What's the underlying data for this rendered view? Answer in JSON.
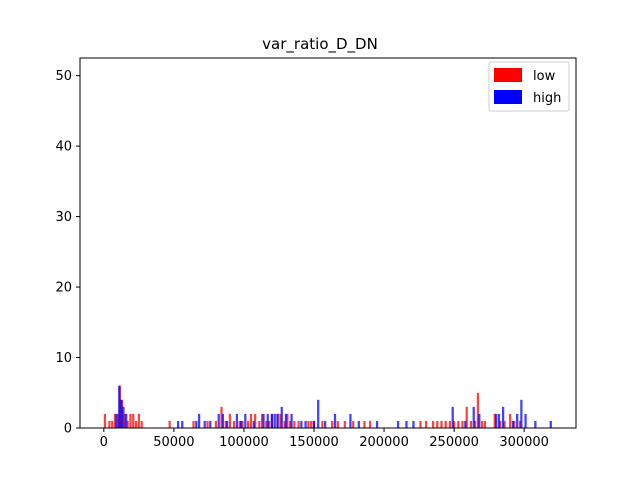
{
  "chart_data": {
    "type": "bar",
    "title": "var_ratio_D_DN",
    "xlabel": "",
    "ylabel": "",
    "xlim": [
      -17000,
      337000
    ],
    "ylim": [
      0,
      52.5
    ],
    "xticks": [
      0,
      50000,
      100000,
      150000,
      200000,
      250000,
      300000
    ],
    "yticks": [
      0,
      10,
      20,
      30,
      40,
      50
    ],
    "grid": false,
    "legend_position": "top-right",
    "bin_width": 1600,
    "series": [
      {
        "name": "low",
        "color": "#ff0000",
        "x": [
          800,
          4000,
          6000,
          8000,
          10000,
          11500,
          13000,
          15000,
          17000,
          19000,
          21000,
          23000,
          25000,
          27000,
          47000,
          64000,
          74000,
          80000,
          84000,
          87000,
          90000,
          93000,
          97000,
          99000,
          103000,
          105000,
          108000,
          111000,
          113000,
          116000,
          118000,
          120000,
          124000,
          126000,
          129000,
          131000,
          133000,
          136000,
          139000,
          146000,
          148000,
          150000,
          156000,
          163000,
          167000,
          172000,
          178000,
          186000,
          190000,
          226000,
          230000,
          235000,
          238000,
          241000,
          244000,
          247000,
          250000,
          253000,
          256000,
          259000,
          262000,
          265000,
          267000,
          270000,
          272000,
          279000,
          283000,
          286000,
          290000,
          293000,
          297000
        ],
        "values": [
          2,
          1,
          1,
          2,
          2,
          6,
          4,
          2,
          1,
          2,
          2,
          1,
          2,
          1,
          1,
          1,
          1,
          1,
          3,
          1,
          2,
          1,
          1,
          1,
          1,
          2,
          2,
          1,
          2,
          1,
          1,
          2,
          2,
          2,
          1,
          2,
          1,
          1,
          1,
          1,
          1,
          1,
          1,
          1,
          1,
          1,
          1,
          1,
          1,
          1,
          1,
          1,
          1,
          1,
          1,
          1,
          1,
          1,
          1,
          3,
          1,
          1,
          5,
          1,
          1,
          2,
          1,
          1,
          2,
          1,
          1
        ]
      },
      {
        "name": "high",
        "color": "#0000ff",
        "x": [
          9000,
          11000,
          12500,
          14000,
          16000,
          53000,
          56000,
          66000,
          68000,
          72000,
          76000,
          82000,
          85000,
          88000,
          95000,
          98000,
          101000,
          107000,
          114000,
          117000,
          120000,
          122000,
          124000,
          127000,
          130000,
          134000,
          141000,
          144000,
          150000,
          153000,
          158000,
          165000,
          176000,
          182000,
          195000,
          210000,
          216000,
          221000,
          249000,
          258000,
          264000,
          268000,
          280000,
          282000,
          285000,
          292000,
          295000,
          298000,
          301000,
          308000,
          319000
        ],
        "values": [
          2,
          6,
          4,
          3,
          2,
          1,
          1,
          1,
          2,
          1,
          1,
          2,
          2,
          1,
          2,
          1,
          2,
          1,
          2,
          2,
          2,
          2,
          2,
          3,
          2,
          2,
          1,
          1,
          1,
          4,
          1,
          2,
          2,
          1,
          1,
          1,
          1,
          1,
          3,
          1,
          3,
          2,
          2,
          2,
          3,
          1,
          2,
          4,
          2,
          1,
          1
        ]
      }
    ]
  }
}
